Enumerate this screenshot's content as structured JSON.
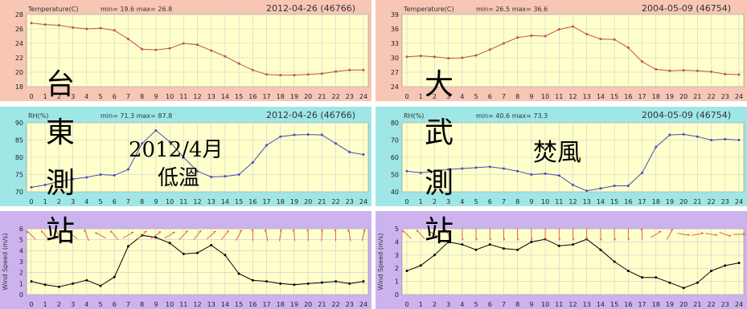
{
  "chart_data": [
    {
      "type": "line",
      "panel": "temp-left",
      "label": "Temperature(C)",
      "stats": "min=  19.6 max=  26.8",
      "date": "2012-04-26 (46766)",
      "ylim": [
        18,
        28
      ],
      "yticks": [
        18,
        20,
        22,
        24,
        26,
        28
      ],
      "bg": "#ffffcc",
      "frame": "#f7c6b5",
      "line_color": "#c0504d",
      "grid": true,
      "x": [
        0,
        1,
        2,
        3,
        4,
        5,
        6,
        7,
        8,
        9,
        10,
        11,
        12,
        13,
        14,
        15,
        16,
        17,
        18,
        19,
        20,
        21,
        22,
        23,
        24
      ],
      "values": [
        26.8,
        26.6,
        26.5,
        26.2,
        26.0,
        26.1,
        25.8,
        24.6,
        23.2,
        23.1,
        23.3,
        24.0,
        23.8,
        23.0,
        22.2,
        21.2,
        20.3,
        19.7,
        19.6,
        19.6,
        19.7,
        19.8,
        20.1,
        20.3,
        20.3
      ]
    },
    {
      "type": "line",
      "panel": "temp-right",
      "label": "Temperature(C)",
      "stats": "min=  26.5 max=  36.6",
      "date": "2004-05-09 (46754)",
      "ylim": [
        24,
        39
      ],
      "yticks": [
        24,
        27,
        30,
        33,
        36,
        39
      ],
      "bg": "#ffffcc",
      "frame": "#f7c6b5",
      "line_color": "#c0504d",
      "grid": true,
      "x": [
        0,
        1,
        2,
        3,
        4,
        5,
        6,
        7,
        8,
        9,
        10,
        11,
        12,
        13,
        14,
        15,
        16,
        17,
        18,
        19,
        20,
        21,
        22,
        23,
        24
      ],
      "values": [
        30.2,
        30.4,
        30.2,
        29.9,
        30.0,
        30.5,
        31.7,
        33.0,
        34.2,
        34.6,
        34.5,
        35.9,
        36.5,
        34.9,
        33.9,
        33.8,
        32.1,
        29.2,
        27.6,
        27.3,
        27.4,
        27.3,
        27.1,
        26.6,
        26.5
      ]
    },
    {
      "type": "line",
      "panel": "rh-left",
      "label": "RH(%)",
      "stats": "min=  71.3 max=  87.8",
      "date": "2012-04-26 (46766)",
      "ylim": [
        70,
        90
      ],
      "yticks": [
        70,
        75,
        80,
        85,
        90
      ],
      "bg": "#ffffcc",
      "frame": "#9fe6e6",
      "line_color": "#4b4bb8",
      "grid": true,
      "x": [
        0,
        1,
        2,
        3,
        4,
        5,
        6,
        7,
        8,
        9,
        10,
        11,
        12,
        13,
        14,
        15,
        16,
        17,
        18,
        19,
        20,
        21,
        22,
        23,
        24
      ],
      "values": [
        71.3,
        72.0,
        73.0,
        73.7,
        74.2,
        75.0,
        74.8,
        76.5,
        84.0,
        87.8,
        84.5,
        80.0,
        76.0,
        74.3,
        74.5,
        75.0,
        78.5,
        83.5,
        86.0,
        86.5,
        86.6,
        86.5,
        84.0,
        81.5,
        80.8
      ]
    },
    {
      "type": "line",
      "panel": "rh-right",
      "label": "RH(%)",
      "stats": "min=  40.6 max=  73.3",
      "date": "2004-05-09 (46754)",
      "ylim": [
        40,
        80
      ],
      "yticks": [
        40,
        50,
        60,
        70,
        80
      ],
      "bg": "#ffffcc",
      "frame": "#9fe6e6",
      "line_color": "#4b4bb8",
      "grid": true,
      "x": [
        0,
        1,
        2,
        3,
        4,
        5,
        6,
        7,
        8,
        9,
        10,
        11,
        12,
        13,
        14,
        15,
        16,
        17,
        18,
        19,
        20,
        21,
        22,
        23,
        24
      ],
      "values": [
        52.0,
        51.0,
        52.0,
        53.0,
        53.5,
        54.0,
        54.5,
        53.5,
        52.0,
        50.0,
        50.5,
        49.5,
        44.0,
        40.6,
        42.0,
        43.5,
        43.5,
        51.0,
        66.0,
        73.0,
        73.3,
        72.0,
        70.0,
        70.5,
        70.0
      ]
    },
    {
      "type": "line",
      "panel": "wind-left",
      "ylabel": "Wind Speed (m/s)",
      "ylim": [
        0,
        6
      ],
      "yticks": [
        0,
        1,
        2,
        3,
        4,
        5,
        6
      ],
      "bg": "#ffffcc",
      "frame": "#ccb3ee",
      "line_color": "#000000",
      "grid": true,
      "x": [
        0,
        1,
        2,
        3,
        4,
        5,
        6,
        7,
        8,
        9,
        10,
        11,
        12,
        13,
        14,
        15,
        16,
        17,
        18,
        19,
        20,
        21,
        22,
        23,
        24
      ],
      "values": [
        1.2,
        0.9,
        0.7,
        1.0,
        1.3,
        0.8,
        1.6,
        4.4,
        5.4,
        5.2,
        4.7,
        3.7,
        3.8,
        4.5,
        3.6,
        1.9,
        1.3,
        1.2,
        1.0,
        0.9,
        1.0,
        1.1,
        1.2,
        1.0,
        1.2
      ],
      "wind_dir_deg": [
        315,
        320,
        330,
        310,
        340,
        300,
        320,
        60,
        50,
        55,
        60,
        45,
        40,
        50,
        40,
        30,
        0,
        350,
        10,
        355,
        0,
        5,
        0,
        350,
        15
      ]
    },
    {
      "type": "line",
      "panel": "wind-right",
      "ylabel": "Wind Speed (m/s)",
      "ylim": [
        0,
        5
      ],
      "yticks": [
        0,
        1,
        2,
        3,
        4,
        5
      ],
      "bg": "#ffffcc",
      "frame": "#ccb3ee",
      "line_color": "#000000",
      "grid": true,
      "x": [
        0,
        1,
        2,
        3,
        4,
        5,
        6,
        7,
        8,
        9,
        10,
        11,
        12,
        13,
        14,
        15,
        16,
        17,
        18,
        19,
        20,
        21,
        22,
        23,
        24
      ],
      "values": [
        1.8,
        2.2,
        3.0,
        4.0,
        3.8,
        3.4,
        3.8,
        3.5,
        3.4,
        4.0,
        4.2,
        3.7,
        3.8,
        4.2,
        3.4,
        2.5,
        1.8,
        1.3,
        1.3,
        0.9,
        0.5,
        0.9,
        1.8,
        2.2,
        2.4
      ],
      "wind_dir_deg": [
        315,
        320,
        300,
        330,
        180,
        180,
        180,
        180,
        180,
        180,
        180,
        180,
        180,
        180,
        180,
        180,
        180,
        0,
        60,
        30,
        100,
        80,
        100,
        110,
        90
      ]
    }
  ],
  "overlays": {
    "station_left": [
      "台",
      "東",
      "測",
      "站"
    ],
    "station_right": [
      "大",
      "武",
      "測",
      "站"
    ],
    "note_left_date": "2012/4月",
    "note_left_type": "低溫",
    "note_right_type": "焚風"
  },
  "colors": {
    "plot_bg": "#ffffcc",
    "grid": "#cccccc",
    "dot": "#c0504d"
  }
}
